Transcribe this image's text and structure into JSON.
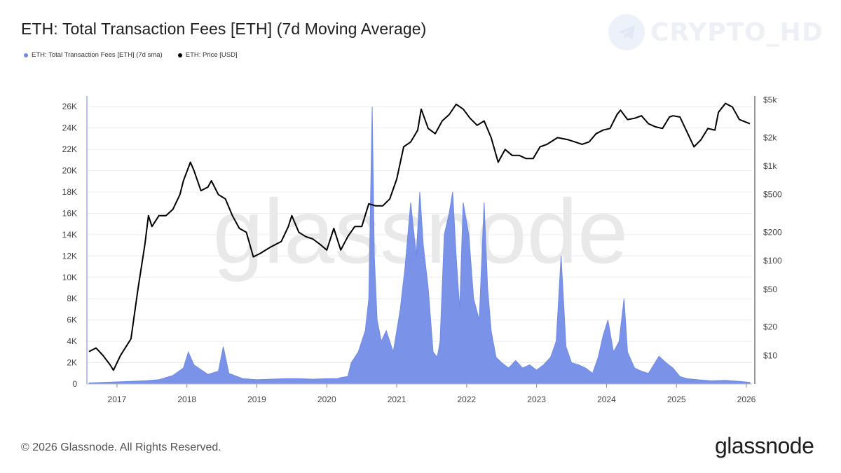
{
  "title": "ETH: Total Transaction Fees [ETH] (7d Moving Average)",
  "legend": [
    {
      "label": "ETH: Total Transaction Fees [ETH] (7d sma)",
      "color": "#6f8ae6"
    },
    {
      "label": "ETH: Price [USD]",
      "color": "#000000"
    }
  ],
  "watermark": {
    "brand": "CRYPTO_HD",
    "center": "glassnode"
  },
  "footer": {
    "copyright": "© 2026 Glassnode. All Rights Reserved.",
    "logo": "glassnode"
  },
  "chart_data": {
    "type": "area",
    "title": "ETH: Total Transaction Fees [ETH] (7d Moving Average)",
    "x_ticks": [
      "2017",
      "2018",
      "2019",
      "2020",
      "2021",
      "2022",
      "2023",
      "2024",
      "2025",
      "2026"
    ],
    "y_left": {
      "label": "",
      "ticks": [
        "0",
        "2K",
        "4K",
        "6K",
        "8K",
        "10K",
        "12K",
        "14K",
        "16K",
        "18K",
        "20K",
        "22K",
        "24K",
        "26K"
      ],
      "range": [
        0,
        27000
      ]
    },
    "y_right": {
      "label": "",
      "scale": "log",
      "ticks": [
        "$10",
        "$20",
        "$50",
        "$100",
        "$200",
        "$500",
        "$1k",
        "$2k",
        "$5k"
      ],
      "tick_values": [
        10,
        20,
        50,
        100,
        200,
        500,
        1000,
        2000,
        5000
      ],
      "range": [
        5,
        5500
      ]
    },
    "grid": true,
    "legend_position": "top-left",
    "series": [
      {
        "name": "ETH: Total Transaction Fees [ETH] (7d sma)",
        "axis": "left",
        "color": "#6f8ae6",
        "x": [
          2016.6,
          2016.8,
          2017.0,
          2017.2,
          2017.4,
          2017.6,
          2017.8,
          2017.95,
          2018.02,
          2018.1,
          2018.3,
          2018.45,
          2018.52,
          2018.6,
          2018.8,
          2019.0,
          2019.2,
          2019.4,
          2019.6,
          2019.8,
          2020.0,
          2020.15,
          2020.2,
          2020.3,
          2020.35,
          2020.45,
          2020.55,
          2020.6,
          2020.65,
          2020.68,
          2020.72,
          2020.78,
          2020.85,
          2020.95,
          2021.05,
          2021.12,
          2021.2,
          2021.28,
          2021.33,
          2021.38,
          2021.45,
          2021.52,
          2021.58,
          2021.62,
          2021.68,
          2021.75,
          2021.8,
          2021.85,
          2021.9,
          2021.95,
          2022.03,
          2022.1,
          2022.18,
          2022.25,
          2022.3,
          2022.35,
          2022.42,
          2022.5,
          2022.6,
          2022.7,
          2022.8,
          2022.9,
          2023.0,
          2023.1,
          2023.2,
          2023.28,
          2023.35,
          2023.42,
          2023.5,
          2023.6,
          2023.7,
          2023.8,
          2023.88,
          2023.95,
          2024.02,
          2024.1,
          2024.18,
          2024.25,
          2024.3,
          2024.4,
          2024.5,
          2024.6,
          2024.75,
          2024.85,
          2024.95,
          2025.05,
          2025.15,
          2025.3,
          2025.5,
          2025.7,
          2025.9,
          2026.05
        ],
        "y": [
          100,
          150,
          200,
          250,
          300,
          400,
          800,
          1500,
          3000,
          1800,
          900,
          1200,
          3500,
          1000,
          500,
          400,
          450,
          500,
          500,
          450,
          500,
          500,
          600,
          700,
          2000,
          3000,
          5000,
          8000,
          26000,
          12000,
          6000,
          4000,
          5000,
          3000,
          7000,
          11000,
          17000,
          12000,
          18000,
          13000,
          9000,
          3000,
          2500,
          4000,
          14000,
          16000,
          18000,
          12000,
          7000,
          17000,
          14000,
          8000,
          6000,
          17000,
          9000,
          5000,
          2500,
          2000,
          1500,
          2200,
          1500,
          1800,
          1300,
          1800,
          2500,
          4000,
          12000,
          3500,
          2000,
          1800,
          1500,
          1000,
          2500,
          4500,
          6000,
          3000,
          4000,
          8000,
          3000,
          1500,
          1200,
          1000,
          2600,
          2000,
          1500,
          700,
          500,
          400,
          300,
          350,
          250,
          150
        ]
      },
      {
        "name": "ETH: Price [USD]",
        "axis": "right",
        "color": "#000000",
        "x": [
          2016.6,
          2016.7,
          2016.8,
          2016.9,
          2016.95,
          2017.05,
          2017.2,
          2017.3,
          2017.4,
          2017.45,
          2017.5,
          2017.6,
          2017.7,
          2017.8,
          2017.9,
          2017.95,
          2018.05,
          2018.1,
          2018.2,
          2018.3,
          2018.35,
          2018.45,
          2018.55,
          2018.65,
          2018.75,
          2018.85,
          2018.95,
          2019.05,
          2019.2,
          2019.35,
          2019.45,
          2019.5,
          2019.6,
          2019.7,
          2019.8,
          2019.9,
          2020.0,
          2020.1,
          2020.2,
          2020.3,
          2020.4,
          2020.5,
          2020.6,
          2020.7,
          2020.8,
          2020.9,
          2021.0,
          2021.1,
          2021.2,
          2021.3,
          2021.35,
          2021.45,
          2021.55,
          2021.65,
          2021.75,
          2021.85,
          2021.95,
          2022.05,
          2022.15,
          2022.25,
          2022.35,
          2022.45,
          2022.55,
          2022.65,
          2022.75,
          2022.85,
          2022.95,
          2023.05,
          2023.15,
          2023.3,
          2023.45,
          2023.55,
          2023.65,
          2023.75,
          2023.85,
          2023.95,
          2024.05,
          2024.15,
          2024.2,
          2024.3,
          2024.4,
          2024.5,
          2024.6,
          2024.7,
          2024.8,
          2024.9,
          2024.95,
          2025.05,
          2025.15,
          2025.25,
          2025.35,
          2025.45,
          2025.55,
          2025.6,
          2025.7,
          2025.8,
          2025.9,
          2026.05
        ],
        "y": [
          11,
          12,
          10,
          8,
          7,
          10,
          15,
          50,
          150,
          300,
          230,
          300,
          300,
          350,
          500,
          700,
          1100,
          900,
          550,
          600,
          700,
          500,
          450,
          300,
          220,
          200,
          110,
          120,
          140,
          160,
          230,
          300,
          200,
          180,
          170,
          150,
          130,
          220,
          130,
          180,
          230,
          230,
          400,
          380,
          380,
          450,
          730,
          1600,
          1800,
          2400,
          4000,
          2500,
          2200,
          3000,
          3500,
          4500,
          4000,
          3200,
          2700,
          3000,
          2000,
          1100,
          1500,
          1300,
          1300,
          1200,
          1200,
          1600,
          1700,
          2000,
          1900,
          1800,
          1700,
          1800,
          2200,
          2400,
          2500,
          3500,
          3900,
          3100,
          3200,
          3400,
          2800,
          2600,
          2500,
          3300,
          3400,
          3300,
          2300,
          1600,
          1900,
          2500,
          2400,
          3700,
          4600,
          4200,
          3100,
          2800
        ]
      }
    ]
  }
}
